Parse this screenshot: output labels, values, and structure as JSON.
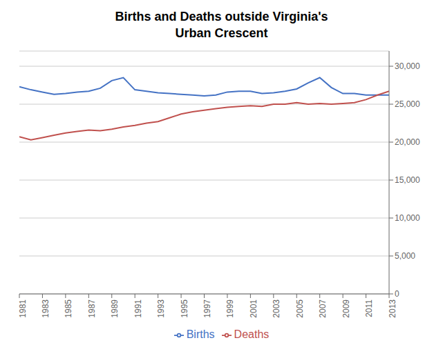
{
  "chart_data": {
    "type": "line",
    "title": "Births and Deaths outside Virginia's\nUrban Crescent",
    "x": [
      1981,
      1982,
      1983,
      1984,
      1985,
      1986,
      1987,
      1988,
      1989,
      1990,
      1991,
      1992,
      1993,
      1994,
      1995,
      1996,
      1997,
      1998,
      1999,
      2000,
      2001,
      2002,
      2003,
      2004,
      2005,
      2006,
      2007,
      2008,
      2009,
      2010,
      2011,
      2012,
      2013
    ],
    "series": [
      {
        "name": "Births",
        "color": "#4472C4",
        "values": [
          27300,
          26900,
          26600,
          26300,
          26400,
          26600,
          26700,
          27100,
          28100,
          28500,
          26900,
          26700,
          26500,
          26400,
          26300,
          26200,
          26100,
          26200,
          26600,
          26700,
          26700,
          26400,
          26500,
          26700,
          27000,
          27800,
          28500,
          27200,
          26400,
          26400,
          26200,
          26200,
          26200
        ]
      },
      {
        "name": "Deaths",
        "color": "#C0504D",
        "values": [
          20700,
          20300,
          20600,
          20900,
          21200,
          21400,
          21600,
          21500,
          21700,
          22000,
          22200,
          22500,
          22700,
          23200,
          23700,
          24000,
          24200,
          24400,
          24600,
          24700,
          24800,
          24700,
          25000,
          25000,
          25200,
          25000,
          25100,
          25000,
          25100,
          25200,
          25600,
          26200,
          26700
        ]
      }
    ],
    "xlim": [
      1981,
      2013
    ],
    "xticks": [
      1981,
      1983,
      1985,
      1987,
      1989,
      1991,
      1993,
      1995,
      1997,
      1999,
      2001,
      2003,
      2005,
      2007,
      2009,
      2011,
      2013
    ],
    "ylim": [
      0,
      32000
    ],
    "yticks": [
      0,
      {
        "value": 5000,
        "label": "5,000"
      },
      {
        "value": 10000,
        "label": "10,000"
      },
      {
        "value": 15000,
        "label": "15,000"
      },
      {
        "value": 20000,
        "label": "20,000"
      },
      {
        "value": 25000,
        "label": "25,000"
      },
      {
        "value": 30000,
        "label": "30,000"
      }
    ],
    "grid": true,
    "legend": "bottom"
  }
}
